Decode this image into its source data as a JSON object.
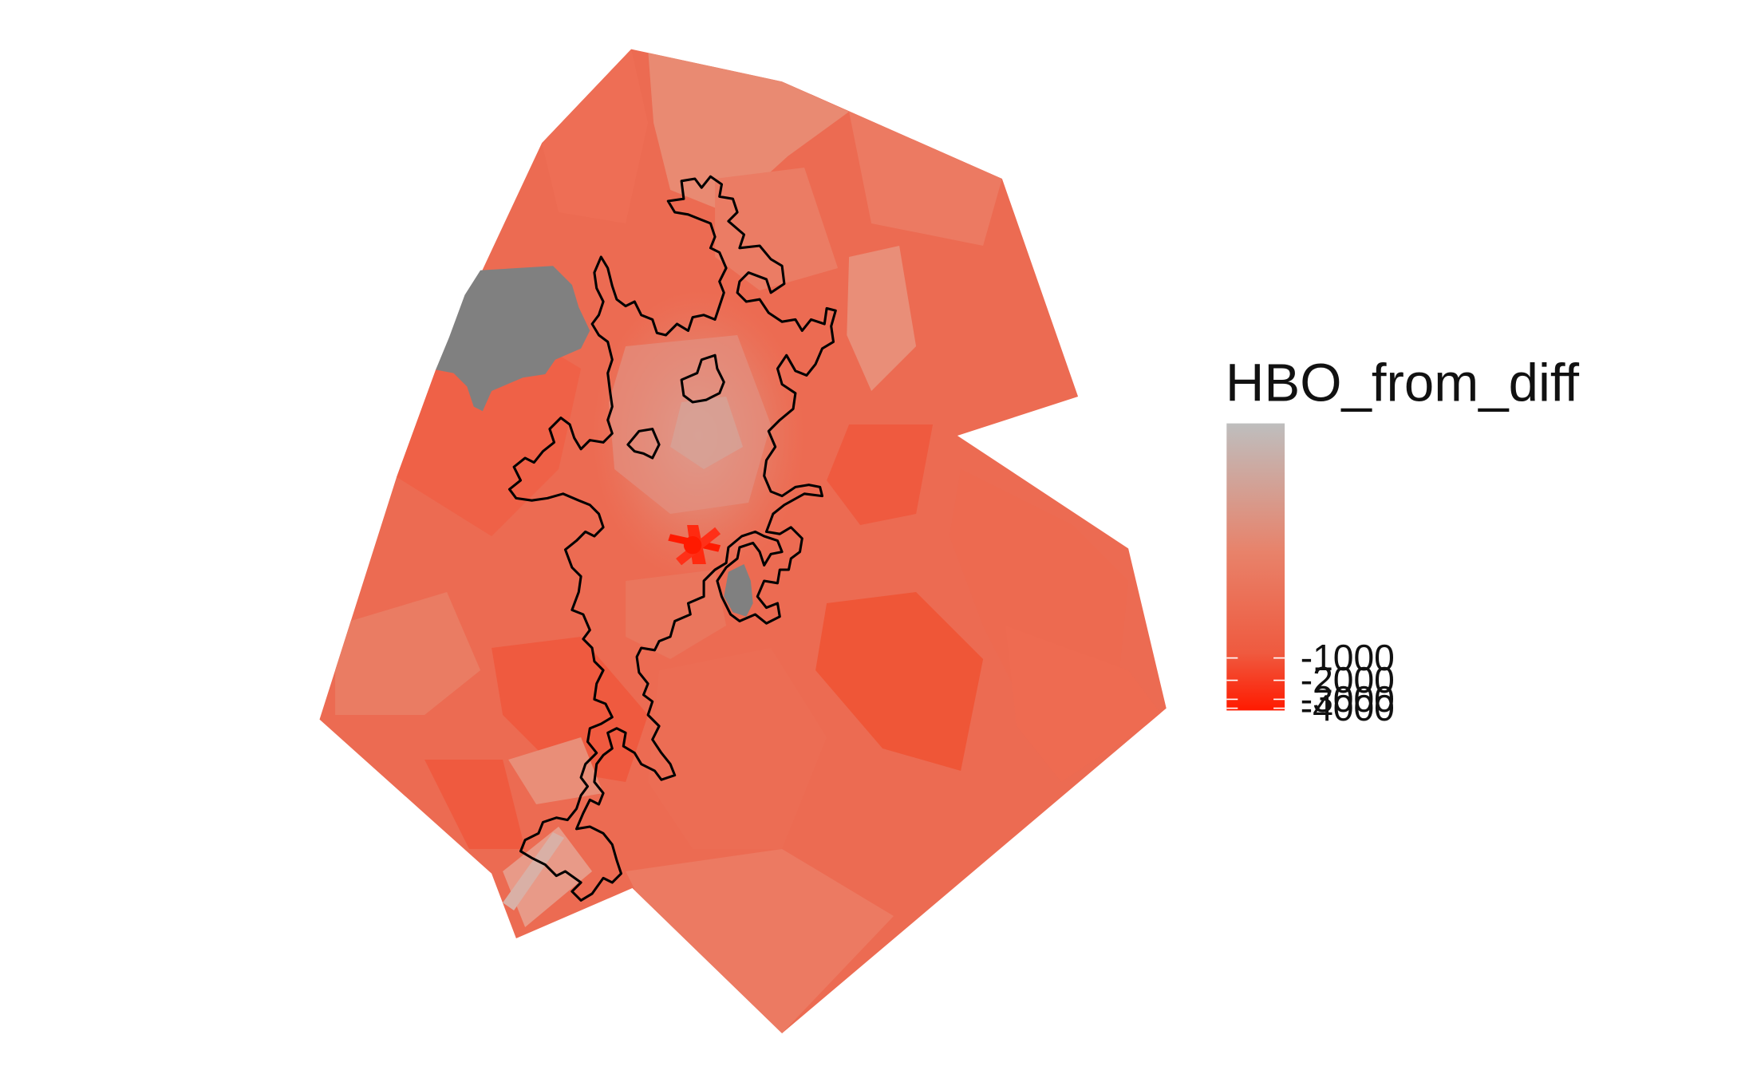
{
  "legend": {
    "title": "HBO_from_diff",
    "breaks": [
      {
        "label": "-1000",
        "value": -1000
      },
      {
        "label": "-2000",
        "value": -2000
      },
      {
        "label": "-3000",
        "value": -3000
      },
      {
        "label": "-4000",
        "value": -4000
      }
    ],
    "gradient_colors": [
      "#bebebe",
      "#e8826a",
      "#ef5a3f",
      "#ff1a00"
    ],
    "na_color": "#808080"
  },
  "boundary": {
    "color": "#000000"
  }
}
